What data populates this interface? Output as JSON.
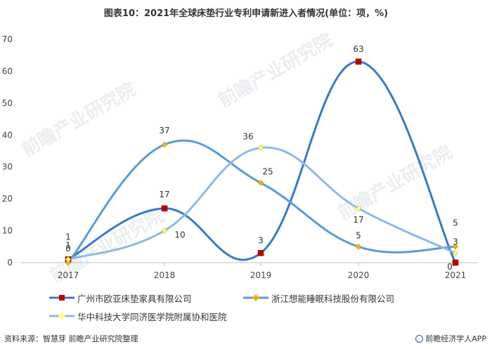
{
  "title": "图表10：2021年全球床垫行业专利申请新进入者情况(单位：项，%)",
  "watermark": "前瞻产业研究院",
  "footer": {
    "source": "资料来源：智慧芽 前瞻产业研究院整理",
    "brand": "前瞻经济学人APP"
  },
  "colors": {
    "series1": "#3a78c9",
    "series2": "#5b9bd5",
    "series3": "#8db8ea",
    "marker1": "#c00000",
    "marker2": "#f0b400",
    "marker3": "#ffff66"
  },
  "chart_data": {
    "type": "line",
    "smooth": true,
    "title": "图表10：2021年全球床垫行业专利申请新进入者情况(单位：项，%)",
    "categories": [
      "2017",
      "2018",
      "2019",
      "2020",
      "2021"
    ],
    "ylim": [
      0,
      70
    ],
    "yticks": [
      0,
      10,
      20,
      30,
      40,
      50,
      60,
      70
    ],
    "grid": false,
    "legend_position": "bottom",
    "series": [
      {
        "name": "广州市欧亚床垫家具有限公司",
        "values": [
          1,
          17,
          3,
          63,
          0
        ],
        "marker": "square"
      },
      {
        "name": "浙江想能睡眠科技股份有限公司",
        "values": [
          0,
          37,
          25,
          5,
          5
        ],
        "marker": "diamond"
      },
      {
        "name": "华中科技大学同济医学院附属协和医院",
        "values": [
          1,
          10,
          36,
          17,
          3
        ],
        "marker": "diamond"
      }
    ]
  }
}
